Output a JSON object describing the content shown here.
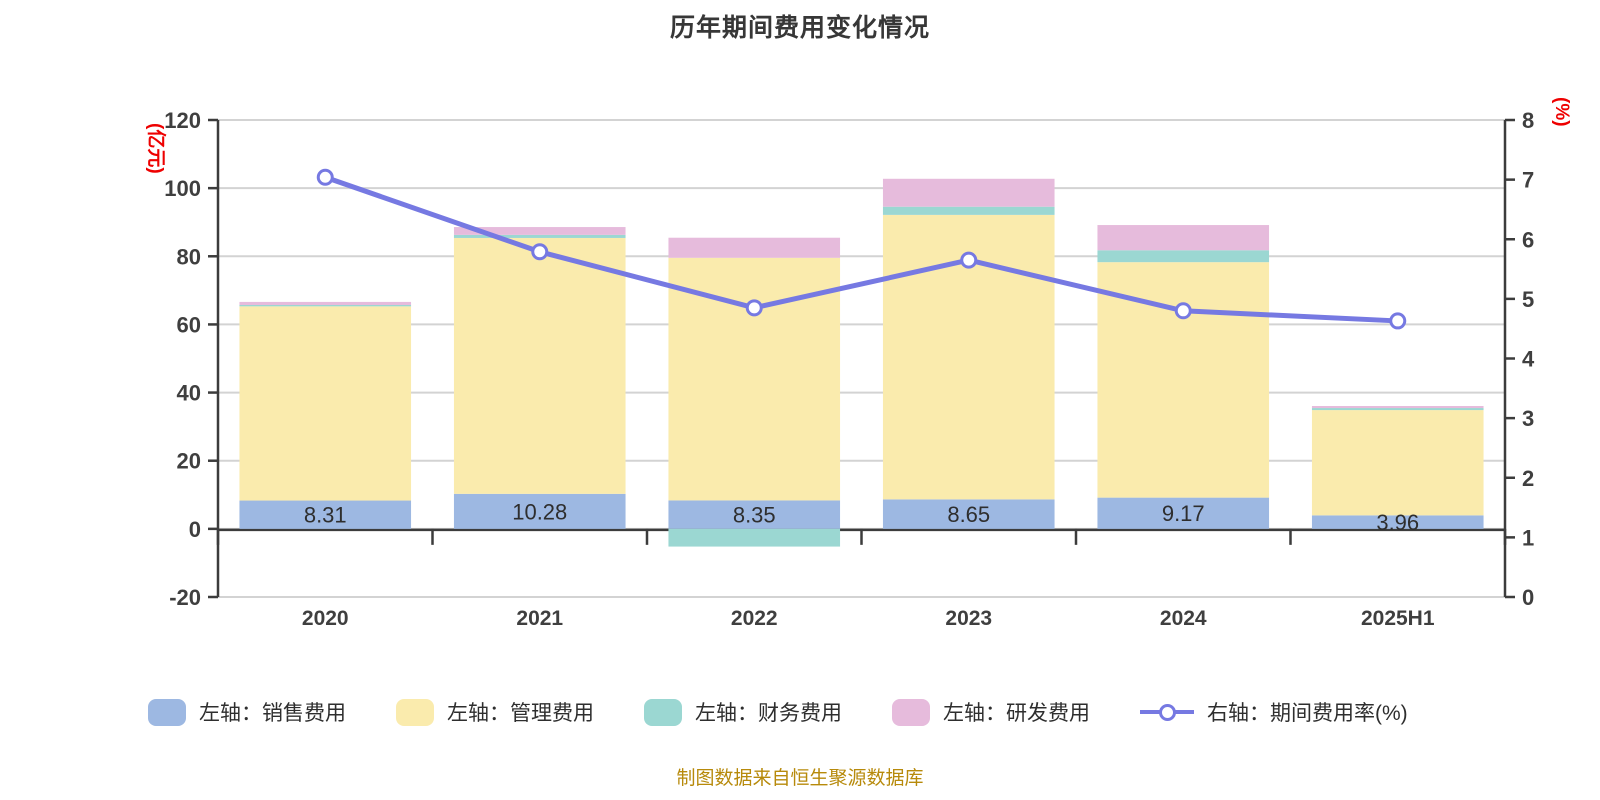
{
  "chart_data": {
    "type": "bar",
    "title": "历年期间费用变化情况",
    "categories": [
      "2020",
      "2021",
      "2022",
      "2023",
      "2024",
      "2025H1"
    ],
    "series": [
      {
        "name": "左轴：销售费用",
        "type": "bar",
        "stack": true,
        "color": "#9DB8E2",
        "values": [
          8.31,
          10.28,
          8.35,
          8.65,
          9.17,
          3.96
        ],
        "labels": [
          "8.31",
          "10.28",
          "8.35",
          "8.65",
          "9.17",
          "3.96"
        ]
      },
      {
        "name": "左轴：管理费用",
        "type": "bar",
        "stack": true,
        "color": "#FAEBAD",
        "values": [
          57.0,
          75.1,
          71.2,
          83.5,
          69.1,
          30.9
        ]
      },
      {
        "name": "左轴：财务费用",
        "type": "bar",
        "stack": true,
        "color": "#9BD7D2",
        "values": [
          0.4,
          0.9,
          -5.2,
          2.4,
          3.5,
          0.6
        ]
      },
      {
        "name": "左轴：研发费用",
        "type": "bar",
        "stack": true,
        "color": "#E6BBDC",
        "values": [
          0.9,
          2.3,
          5.9,
          8.2,
          7.4,
          0.6
        ]
      },
      {
        "name": "右轴：期间费用率(%)",
        "type": "line",
        "axis": "right",
        "color": "#7679E2",
        "values": [
          7.04,
          5.79,
          4.85,
          5.65,
          4.8,
          4.63
        ]
      }
    ],
    "left_axis": {
      "unit": "(亿元)",
      "min": -20,
      "max": 120,
      "step": 20,
      "ticks": [
        120,
        100,
        80,
        60,
        40,
        20,
        0,
        -20
      ]
    },
    "right_axis": {
      "unit": "(%)",
      "min": 0,
      "max": 8,
      "step": 1,
      "ticks": [
        8,
        7,
        6,
        5,
        4,
        3,
        2,
        1,
        0
      ]
    },
    "grid": true,
    "legend_position": "bottom",
    "bar_label_color": "#2e2e2e",
    "axis_color": "#3c3c3c",
    "grid_color": "#d3d3d3",
    "unit_label_color": "#ee0000"
  },
  "footer": {
    "source": "制图数据来自恒生聚源数据库"
  }
}
